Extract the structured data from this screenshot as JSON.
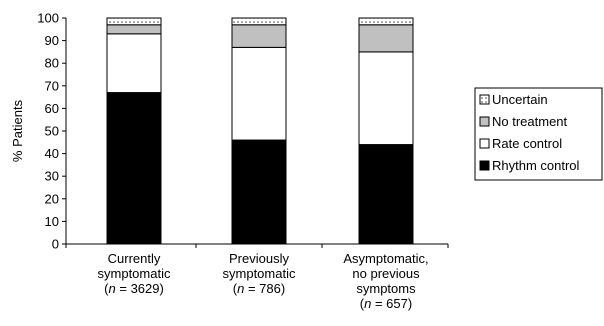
{
  "chart_data": {
    "type": "bar",
    "stacked": true,
    "title": "",
    "xlabel": "",
    "ylabel": "% Patients",
    "ylim": [
      0,
      100
    ],
    "yticks": [
      0,
      10,
      20,
      30,
      40,
      50,
      60,
      70,
      80,
      90,
      100
    ],
    "categories": [
      {
        "lines": [
          {
            "text": "Currently"
          },
          {
            "text": "symptomatic"
          },
          {
            "text": "(n = 3629)",
            "n_italic": true,
            "pre": "(",
            "n": "n",
            "post": " = 3629)"
          }
        ]
      },
      {
        "lines": [
          {
            "text": "Previously"
          },
          {
            "text": "symptomatic"
          },
          {
            "text": "(n = 786)",
            "n_italic": true,
            "pre": "(",
            "n": "n",
            "post": " = 786)"
          }
        ]
      },
      {
        "lines": [
          {
            "text": "Asymptomatic,"
          },
          {
            "text": "no previous"
          },
          {
            "text": "symptoms"
          },
          {
            "text": "(n = 657)",
            "n_italic": true,
            "pre": "(",
            "n": "n",
            "post": " = 657)"
          }
        ]
      }
    ],
    "series": [
      {
        "name": "Rhythm control",
        "values": [
          67,
          46,
          44
        ],
        "fill": "#000000",
        "pattern": "solid"
      },
      {
        "name": "Rate control",
        "values": [
          26,
          41,
          41
        ],
        "fill": "#ffffff",
        "pattern": "solid"
      },
      {
        "name": "No treatment",
        "values": [
          4,
          10,
          12
        ],
        "fill": "#c0c0c0",
        "pattern": "solid"
      },
      {
        "name": "Uncertain",
        "values": [
          3,
          3,
          3
        ],
        "fill": "#ffffff",
        "pattern": "dotted"
      }
    ],
    "legend": {
      "placement": "right",
      "order": [
        "Uncertain",
        "No treatment",
        "Rate control",
        "Rhythm control"
      ]
    },
    "grid": false
  }
}
